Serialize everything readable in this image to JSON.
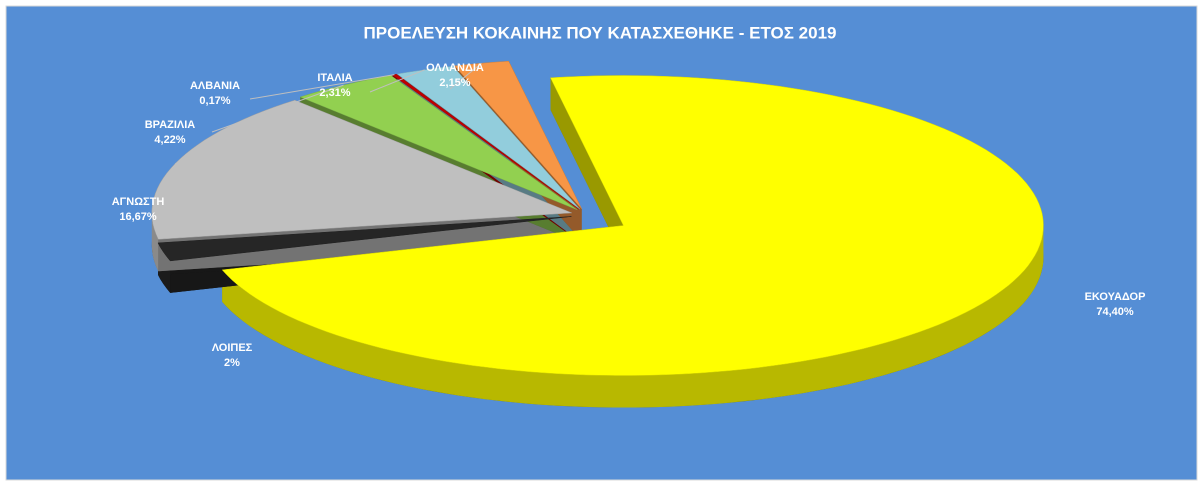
{
  "chart_data": {
    "type": "pie3d",
    "title": "ΠΡΟΕΛΕΥΣΗ ΚΟΚΑΙΝΗΣ ΠΟΥ ΚΑΤΑΣΧΕΘΗΚΕ - ΕΤΟΣ 2019",
    "categories": [
      "ΕΚΟΥΑΔΟΡ",
      "ΛΟΙΠΕΣ",
      "ΑΓΝΩΣΤΗ",
      "ΒΡΑΖΙΛΙΑ",
      "ΑΛΒΑΝΙΑ",
      "ΙΤΑΛΙΑ",
      "ΟΛΛΑΝΔΙΑ"
    ],
    "values": [
      74.4,
      2,
      16.67,
      4.22,
      0.17,
      2.31,
      2.15
    ],
    "value_labels": [
      "74,40%",
      "2%",
      "16,67%",
      "4,22%",
      "0,17%",
      "2,31%",
      "2,15%"
    ],
    "colors": [
      "#ffff00",
      "#262626",
      "#bfbfbf",
      "#92d050",
      "#c00000",
      "#92cddc",
      "#f79646"
    ]
  }
}
